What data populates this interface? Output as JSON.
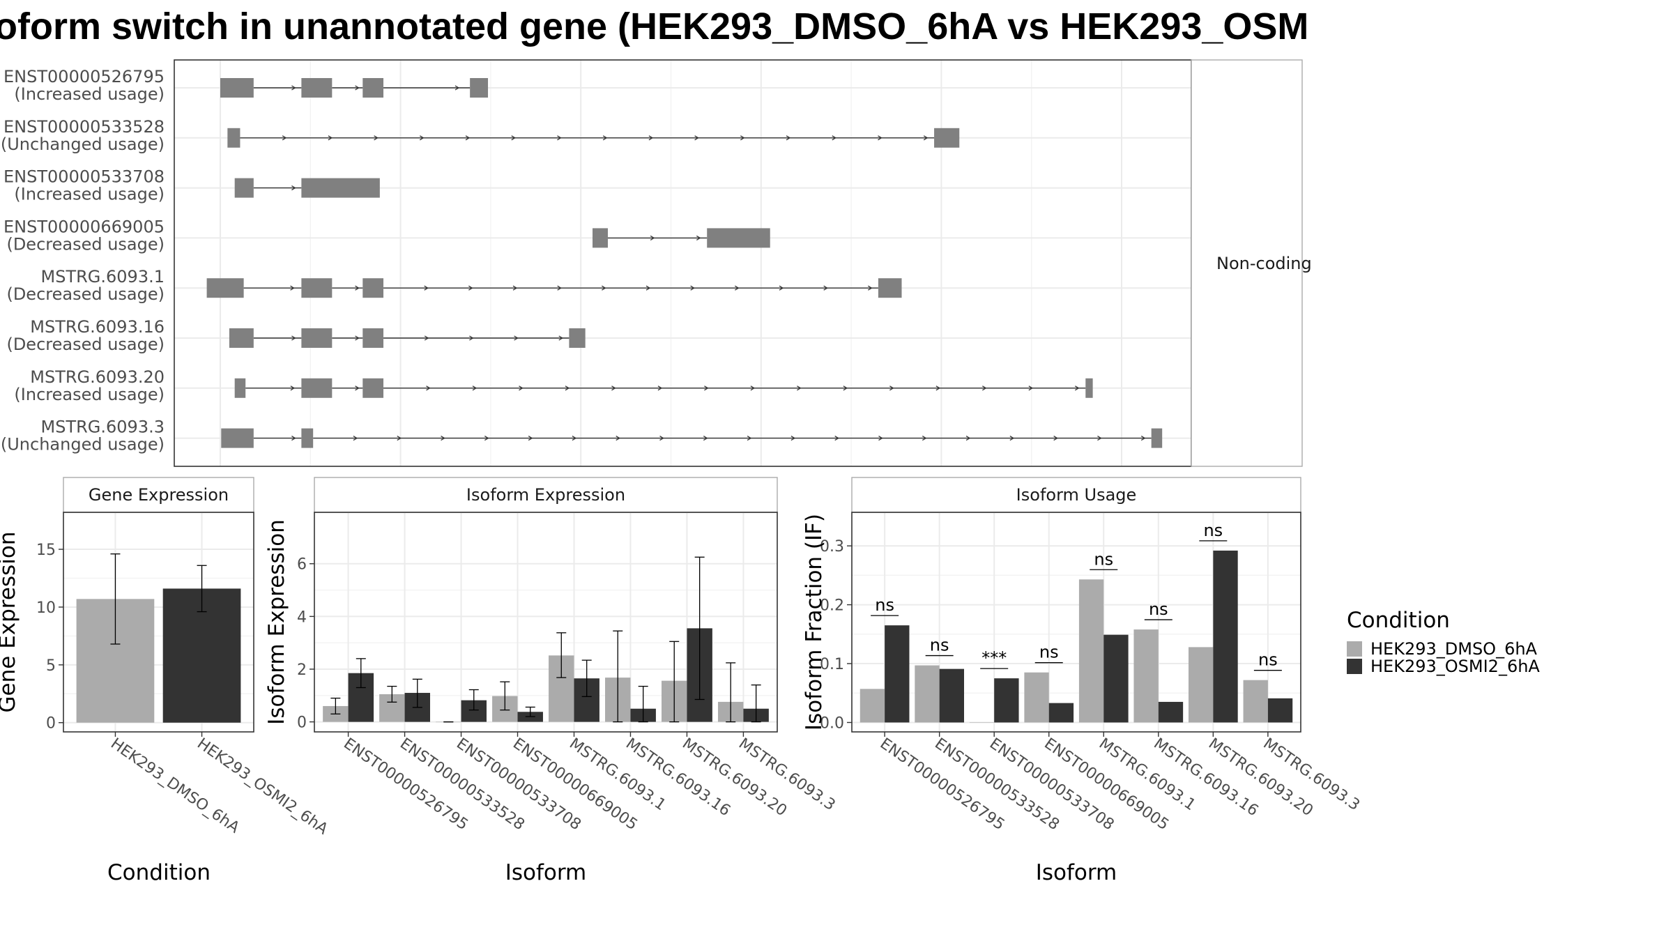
{
  "title": "oform switch in unannotated gene (HEK293_DMSO_6hA vs HEK293_OSM",
  "colors": {
    "cond1": "#ababab",
    "cond2": "#333333",
    "exon": "#808080",
    "intron": "#333333",
    "grid": "#ebebeb",
    "panel_border": "#333333",
    "strip_border": "#aaaaaa"
  },
  "legend": {
    "title": "Condition",
    "entries": [
      "HEK293_DMSO_6hA",
      "HEK293_OSMI2_6hA"
    ]
  },
  "chart_data": [
    {
      "type": "table",
      "panel": "isoform-structures",
      "facet_label": "Non-coding",
      "isoforms": [
        {
          "id": "ENST00000526795",
          "usage": "(Increased usage)",
          "exons": [
            [
              0.0,
              0.037
            ],
            [
              0.09,
              0.124
            ],
            [
              0.158,
              0.181
            ],
            [
              0.277,
              0.297
            ]
          ]
        },
        {
          "id": "ENST00000533528",
          "usage": "(Unchanged usage)",
          "exons": [
            [
              0.008,
              0.022
            ],
            [
              0.792,
              0.82
            ]
          ]
        },
        {
          "id": "ENST00000533708",
          "usage": "(Increased usage)",
          "exons": [
            [
              0.016,
              0.037
            ],
            [
              0.09,
              0.177
            ]
          ]
        },
        {
          "id": "ENST00000669005",
          "usage": "(Decreased usage)",
          "exons": [
            [
              0.413,
              0.43
            ],
            [
              0.54,
              0.61
            ]
          ]
        },
        {
          "id": "MSTRG.6093.1",
          "usage": "(Decreased usage)",
          "exons": [
            [
              -0.015,
              0.026
            ],
            [
              0.09,
              0.124
            ],
            [
              0.158,
              0.181
            ],
            [
              0.73,
              0.756
            ]
          ]
        },
        {
          "id": "MSTRG.6093.16",
          "usage": "(Decreased usage)",
          "exons": [
            [
              0.01,
              0.037
            ],
            [
              0.09,
              0.124
            ],
            [
              0.158,
              0.181
            ],
            [
              0.387,
              0.405
            ]
          ]
        },
        {
          "id": "MSTRG.6093.20",
          "usage": "(Increased usage)",
          "exons": [
            [
              0.016,
              0.028
            ],
            [
              0.09,
              0.124
            ],
            [
              0.158,
              0.181
            ],
            [
              0.96,
              0.968
            ]
          ]
        },
        {
          "id": "MSTRG.6093.3",
          "usage": "(Unchanged usage)",
          "exons": [
            [
              0.001,
              0.037
            ],
            [
              0.09,
              0.103
            ],
            [
              1.033,
              1.045
            ]
          ]
        }
      ]
    },
    {
      "type": "bar",
      "panel": "gene-expression",
      "strip": "Gene Expression",
      "categories": [
        "HEK293_DMSO_6hA",
        "HEK293_OSMI2_6hA"
      ],
      "values": [
        10.7,
        11.6
      ],
      "errors": [
        [
          6.8,
          14.6
        ],
        [
          9.6,
          13.6
        ]
      ],
      "ylim": [
        -0.8,
        18.2
      ],
      "yticks": [
        0,
        5,
        10,
        15
      ],
      "xlabel": "Condition",
      "ylabel": "Gene Expression"
    },
    {
      "type": "bar",
      "panel": "isoform-expression",
      "strip": "Isoform Expression",
      "categories": [
        "ENST00000526795",
        "ENST00000533528",
        "ENST00000533708",
        "ENST00000669005",
        "MSTRG.6093.1",
        "MSTRG.6093.16",
        "MSTRG.6093.20",
        "MSTRG.6093.3"
      ],
      "series": [
        {
          "name": "HEK293_DMSO_6hA",
          "values": [
            0.6,
            1.05,
            0.0,
            0.98,
            2.52,
            1.68,
            1.56,
            0.76
          ],
          "errors": [
            [
              0.3,
              0.9
            ],
            [
              0.75,
              1.35
            ],
            [
              0.0,
              0.0
            ],
            [
              0.45,
              1.52
            ],
            [
              1.68,
              3.38
            ],
            [
              0.0,
              3.45
            ],
            [
              0.0,
              3.05
            ],
            [
              0.0,
              2.24
            ]
          ]
        },
        {
          "name": "HEK293_OSMI2_6hA",
          "values": [
            1.85,
            1.1,
            0.82,
            0.38,
            1.65,
            0.5,
            3.55,
            0.5
          ],
          "errors": [
            [
              1.3,
              2.4
            ],
            [
              0.55,
              1.62
            ],
            [
              0.45,
              1.22
            ],
            [
              0.2,
              0.56
            ],
            [
              0.96,
              2.34
            ],
            [
              0.0,
              1.35
            ],
            [
              0.85,
              6.25
            ],
            [
              0.0,
              1.4
            ]
          ]
        }
      ],
      "ylim": [
        -0.38,
        7.95
      ],
      "yticks": [
        0,
        2,
        4,
        6
      ],
      "xlabel": "Isoform",
      "ylabel": "Isoform Expression"
    },
    {
      "type": "bar",
      "panel": "isoform-usage",
      "strip": "Isoform Usage",
      "categories": [
        "ENST00000526795",
        "ENST00000533528",
        "ENST00000533708",
        "ENST00000669005",
        "MSTRG.6093.1",
        "MSTRG.6093.16",
        "MSTRG.6093.20",
        "MSTRG.6093.3"
      ],
      "series": [
        {
          "name": "HEK293_DMSO_6hA",
          "values": [
            0.057,
            0.097,
            0.0,
            0.085,
            0.243,
            0.158,
            0.128,
            0.072
          ]
        },
        {
          "name": "HEK293_OSMI2_6hA",
          "values": [
            0.165,
            0.091,
            0.075,
            0.033,
            0.149,
            0.035,
            0.292,
            0.041
          ]
        }
      ],
      "significance": [
        "ns",
        "ns",
        "***",
        "ns",
        "ns",
        "ns",
        "ns",
        "ns"
      ],
      "ylim": [
        -0.016,
        0.357
      ],
      "yticks": [
        0.0,
        0.1,
        0.2,
        0.3
      ],
      "ytick_labels": [
        "0.0",
        "0.1",
        "0.2",
        "0.3"
      ],
      "xlabel": "Isoform",
      "ylabel": "Isoform Fraction (IF)"
    }
  ]
}
